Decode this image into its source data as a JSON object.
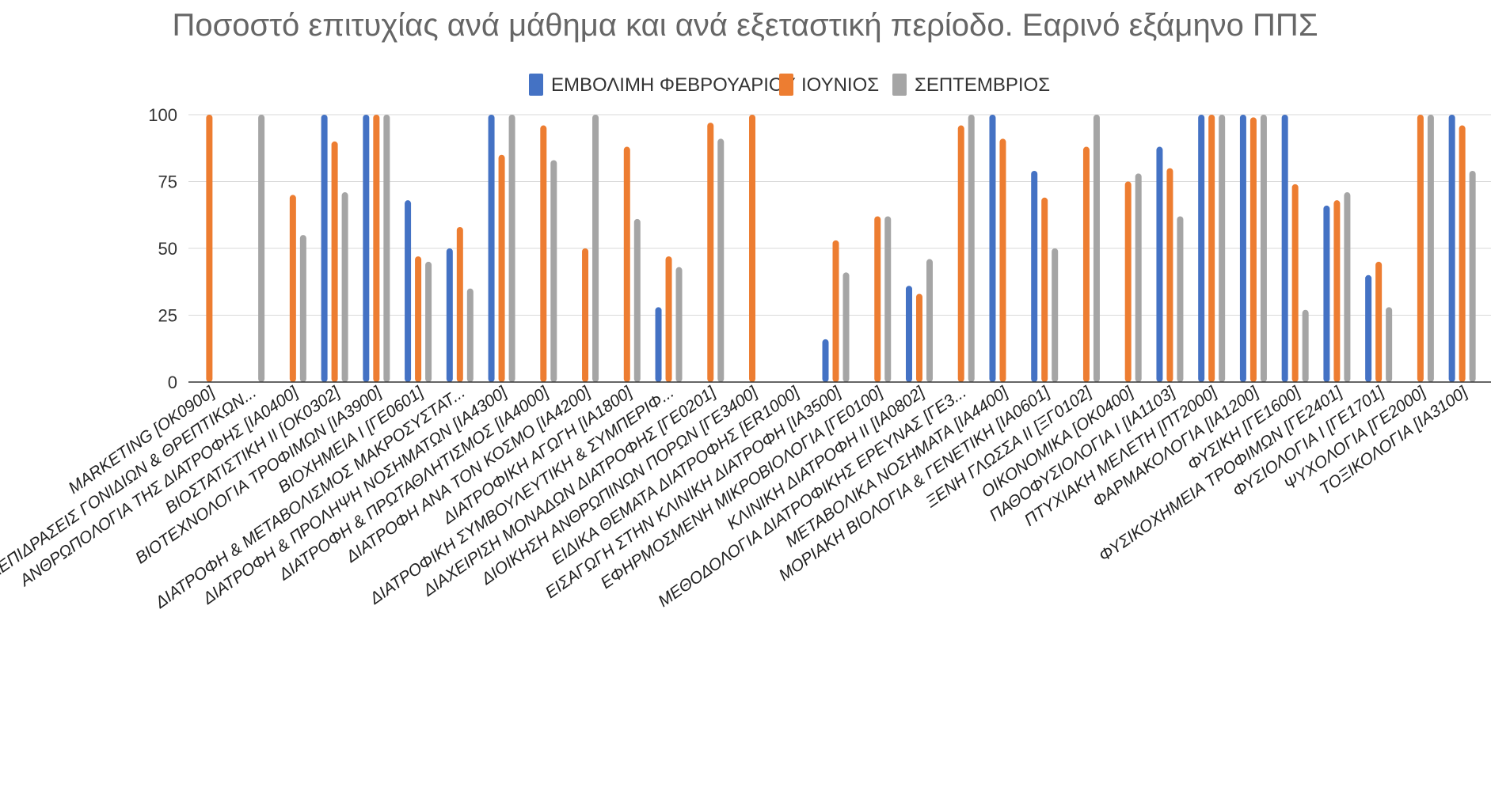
{
  "chart_data": {
    "type": "bar",
    "title": "Ποσοστό επιτυχίας ανά μάθημα και ανά εξεταστική περίοδο. Εαρινό εξάμηνο ΠΠΣ",
    "xlabel": "",
    "ylabel": "",
    "ylim": [
      0,
      100
    ],
    "yticks": [
      0,
      25,
      50,
      75,
      100
    ],
    "grid": true,
    "legend_position": "top",
    "categories": [
      "MARKETING [OK0900]",
      "ΑΛΛΗΛΕΠΙΔΡΑΣΕΙΣ ΓΟΝΙΔΙΩΝ & ΘΡΕΠΤΙΚΩΝ...",
      "ΑΝΘΡΩΠΟΛΟΓΙΑ ΤΗΣ ΔΙΑΤΡΟΦΗΣ [ΙΑ0400]",
      "ΒΙΟΣΤΑΤΙΣΤΙΚΗ ΙΙ [ΟΚ0302]",
      "ΒΙΟΤΕΧΝΟΛΟΓΙΑ ΤΡΟΦΙΜΩΝ [ΙΑ3900]",
      "ΒΙΟΧΗΜΕΙΑ Ι [ΓΕ0601]",
      "ΔΙΑΤΡΟΦΗ & ΜΕΤΑΒΟΛΙΣΜΟΣ ΜΑΚΡΟΣΥΣΤΑΤ...",
      "ΔΙΑΤΡΟΦΗ & ΠΡΟΛΗΨΗ ΝΟΣΗΜΑΤΩΝ [ΙΑ4300]",
      "ΔΙΑΤΡΟΦΗ & ΠΡΩΤΑΘΛΗΤΙΣΜΟΣ [ΙΑ4000]",
      "ΔΙΑΤΡΟΦΗ ΑΝΑ ΤΟΝ ΚΟΣΜΟ [ΙΑ4200]",
      "ΔΙΑΤΡΟΦΙΚΗ ΑΓΩΓΗ [ΙΑ1800]",
      "ΔΙΑΤΡΟΦΙΚΗ ΣΥΜΒΟΥΛΕΥΤΙΚΗ & ΣΥΜΠΕΡΙΦ...",
      "ΔΙΑΧΕΙΡΙΣΗ ΜΟΝΑΔΩΝ ΔΙΑΤΡΟΦΗΣ [ΓΕ0201]",
      "ΔΙΟΙΚΗΣΗ ΑΝΘΡΩΠΙΝΩΝ ΠΟΡΩΝ [ΓΕ3400]",
      "ΕΙΔΙΚΑ ΘΕΜΑΤΑ ΔΙΑΤΡΟΦΗΣ [ΕR1000]",
      "ΕΙΣΑΓΩΓΗ ΣΤΗΝ ΚΛΙΝΙΚΗ ΔΙΑΤΡΟΦΗ [ΙΑ3500]",
      "ΕΦΗΡΜΟΣΜΕΝΗ ΜΙΚΡΟΒΙΟΛΟΓΙΑ [ΓΕ0100]",
      "ΚΛΙΝΙΚΗ ΔΙΑΤΡΟΦΗ ΙΙ [ΙΑ0802]",
      "ΜΕΘΟΔΟΛΟΓΙΑ ΔΙΑΤΡΟΦΙΚΗΣ ΕΡΕΥΝΑΣ [ΓΕ3...",
      "ΜΕΤΑΒΟΛΙΚΑ ΝΟΣΗΜΑΤΑ [ΙΑ4400]",
      "ΜΟΡΙΑΚΗ ΒΙΟΛΟΓΙΑ & ΓΕΝΕΤΙΚΗ [ΙΑ0601]",
      "ΞΕΝΗ ΓΛΩΣΣΑ ΙΙ [ΞΓ0102]",
      "ΟΙΚΟΝΟΜΙΚΑ [ΟΚ0400]",
      "ΠΑΘΟΦΥΣΙΟΛΟΓΙΑ Ι [ΙΑ1103]",
      "ΠΤΥΧΙΑΚΗ ΜΕΛΕΤΗ [ΠΤ2000]",
      "ΦΑΡΜΑΚΟΛΟΓΙΑ [ΙΑ1200]",
      "ΦΥΣΙΚΗ [ΓΕ1600]",
      "ΦΥΣΙΚΟΧΗΜΕΙΑ ΤΡΟΦΙΜΩΝ [ΓΕ2401]",
      "ΦΥΣΙΟΛΟΓΙΑ Ι [ΓΕ1701]",
      "ΨΥΧΟΛΟΓΙΑ [ΓΕ2000]",
      "ΤΟΞΙΚΟΛΟΓΙΑ [ΙΑ3100]"
    ],
    "series": [
      {
        "name": "ΕΜΒΟΛΙΜΗ ΦΕΒΡΟΥΑΡΙΟΥ",
        "color": "#4472c4",
        "values": [
          null,
          null,
          null,
          100,
          100,
          68,
          50,
          100,
          null,
          null,
          null,
          28,
          null,
          null,
          null,
          16,
          null,
          36,
          null,
          100,
          79,
          null,
          null,
          88,
          100,
          100,
          100,
          66,
          40,
          null,
          100
        ]
      },
      {
        "name": "ΙΟΥΝΙΟΣ",
        "color": "#ed7d31",
        "values": [
          100,
          null,
          70,
          90,
          100,
          47,
          58,
          85,
          96,
          50,
          88,
          47,
          97,
          100,
          null,
          53,
          62,
          33,
          96,
          91,
          69,
          88,
          75,
          80,
          100,
          99,
          74,
          68,
          45,
          100,
          96
        ]
      },
      {
        "name": "ΣΕΠΤΕΜΒΡΙΟΣ",
        "color": "#a5a5a5",
        "values": [
          null,
          100,
          55,
          71,
          100,
          45,
          35,
          100,
          83,
          100,
          61,
          43,
          91,
          null,
          null,
          41,
          62,
          46,
          100,
          null,
          50,
          100,
          78,
          62,
          100,
          100,
          27,
          71,
          28,
          100,
          79
        ]
      }
    ]
  }
}
